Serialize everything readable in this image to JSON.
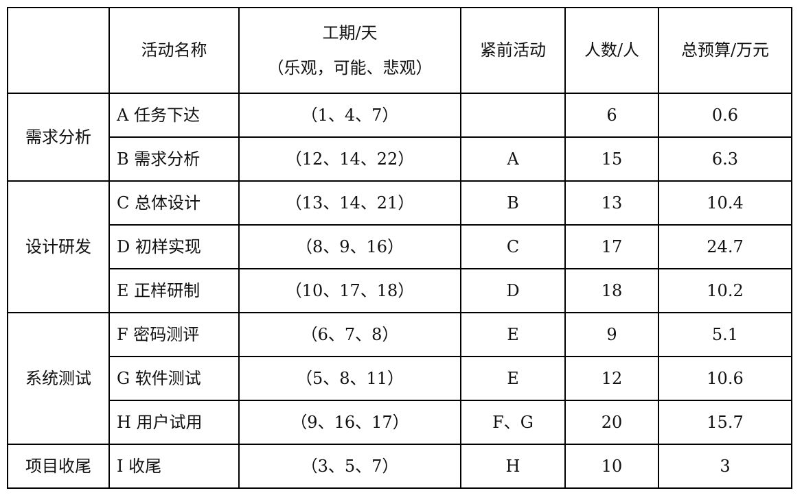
{
  "header": {
    "name": "活动名称",
    "duration": "工期/天",
    "duration_sub": "（乐观，可能、悲观）",
    "predecessor": "紧前活动",
    "people": "人数/人",
    "budget": "总预算/万元"
  },
  "phases": [
    {
      "label": "需求分析",
      "rows": [
        {
          "name": "A 任务下达",
          "duration": "（1、4、7）",
          "predecessor": "",
          "people": "6",
          "budget": "0.6"
        },
        {
          "name": "B 需求分析",
          "duration": "（12、14、22）",
          "predecessor": "A",
          "people": "15",
          "budget": "6.3"
        }
      ]
    },
    {
      "label": "设计研发",
      "rows": [
        {
          "name": "C 总体设计",
          "duration": "（13、14、21）",
          "predecessor": "B",
          "people": "13",
          "budget": "10.4"
        },
        {
          "name": "D 初样实现",
          "duration": "（8、9、16）",
          "predecessor": "C",
          "people": "17",
          "budget": "24.7"
        },
        {
          "name": "E 正样研制",
          "duration": "（10、17、18）",
          "predecessor": "D",
          "people": "18",
          "budget": "10.2"
        }
      ]
    },
    {
      "label": "系统测试",
      "rows": [
        {
          "name": "F 密码测评",
          "duration": "（6、7、8）",
          "predecessor": "E",
          "people": "9",
          "budget": "5.1"
        },
        {
          "name": "G 软件测试",
          "duration": "（5、8、11）",
          "predecessor": "E",
          "people": "12",
          "budget": "10.6"
        },
        {
          "name": "H 用户试用",
          "duration": "（9、16、17）",
          "predecessor": "F、G",
          "people": "20",
          "budget": "15.7"
        }
      ]
    },
    {
      "label": "项目收尾",
      "rows": [
        {
          "name": "I 收尾",
          "duration": "（3、5、7）",
          "predecessor": "H",
          "people": "10",
          "budget": "3"
        }
      ]
    }
  ]
}
